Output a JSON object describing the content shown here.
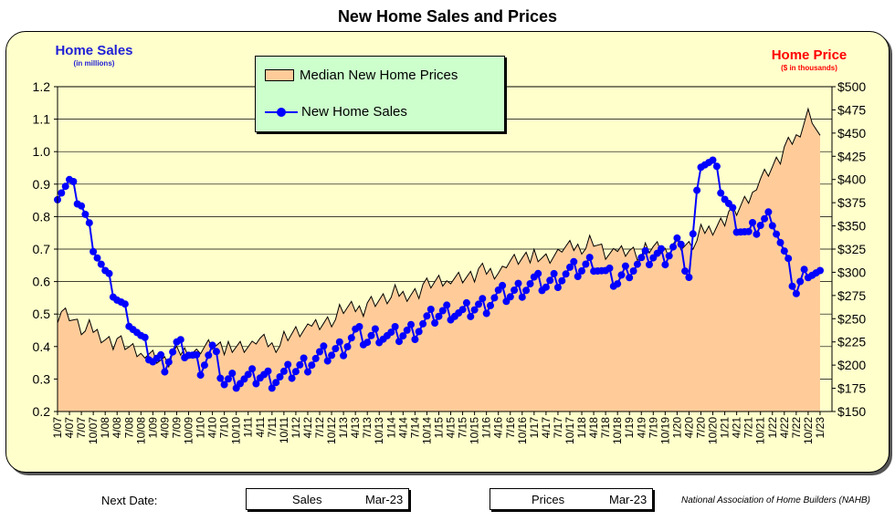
{
  "title": "New Home Sales and Prices",
  "left_axis": {
    "label": "Home Sales",
    "sub": "(in millions)"
  },
  "right_axis": {
    "label": "Home Price",
    "sub": "($ in thousands)"
  },
  "legend": {
    "prices": "Median New Home Prices",
    "sales": "New Home Sales"
  },
  "footer": {
    "next_date": "Next Date:",
    "sales_box": {
      "label": "Sales",
      "date": "Mar-23"
    },
    "prices_box": {
      "label": "Prices",
      "date": "Mar-23"
    },
    "source": "National Association of Home Builders (NAHB)"
  },
  "colors": {
    "panel": "#ffffcc",
    "area": "#ffcc99",
    "sales": "#0000ff",
    "legend_bg": "#ccffcc",
    "left_label": "#1f1fd6",
    "right_label": "#ff0000"
  },
  "chart_data": {
    "type": "line",
    "title": "New Home Sales and Prices",
    "x_tick_labels": [
      "1/07",
      "4/07",
      "7/07",
      "10/07",
      "1/08",
      "4/08",
      "7/08",
      "10/08",
      "1/09",
      "4/09",
      "7/09",
      "10/09",
      "1/10",
      "4/10",
      "7/10",
      "10/10",
      "1/11",
      "4/11",
      "7/11",
      "10/11",
      "1/12",
      "4/12",
      "7/12",
      "10/12",
      "1/13",
      "4/13",
      "7/13",
      "10/13",
      "1/14",
      "4/14",
      "7/14",
      "10/14",
      "1/15",
      "4/15",
      "7/15",
      "10/15",
      "1/16",
      "4/16",
      "7/16",
      "10/16",
      "1/17",
      "4/17",
      "7/17",
      "10/17",
      "1/18",
      "4/18",
      "7/18",
      "10/18",
      "1/19",
      "4/19",
      "7/19",
      "10/19",
      "1/20",
      "4/20",
      "7/20",
      "10/20",
      "1/21",
      "4/21",
      "7/21",
      "10/21",
      "1/22",
      "4/22",
      "7/22",
      "10/22",
      "1/23"
    ],
    "y_left": {
      "label": "Home Sales",
      "unit": "in millions",
      "min": 0.2,
      "max": 1.2,
      "ticks": [
        "0.2",
        "0.3",
        "0.4",
        "0.5",
        "0.6",
        "0.7",
        "0.8",
        "0.9",
        "1.0",
        "1.1",
        "1.2"
      ]
    },
    "y_right": {
      "label": "Home Price",
      "unit": "$ in thousands",
      "min": 150,
      "max": 500,
      "ticks": [
        "$150",
        "$175",
        "$200",
        "$225",
        "$250",
        "$275",
        "$300",
        "$325",
        "$350",
        "$375",
        "$400",
        "$425",
        "$450",
        "$475",
        "$500"
      ]
    },
    "series": [
      {
        "name": "Median New Home Prices",
        "type": "area",
        "axis": "right",
        "quarterly_values": [
          257,
          253,
          240,
          236,
          230,
          225,
          218,
          213,
          210,
          205,
          210,
          218,
          215,
          222,
          218,
          220,
          222,
          225,
          222,
          228,
          235,
          240,
          245,
          250,
          258,
          262,
          265,
          270,
          275,
          275,
          280,
          285,
          290,
          292,
          295,
          298,
          300,
          303,
          310,
          315,
          318,
          315,
          322,
          325,
          330,
          332,
          320,
          322,
          325,
          320,
          325,
          325,
          330,
          328,
          340,
          348,
          360,
          365,
          380,
          400,
          415,
          430,
          445,
          475,
          440
        ]
      },
      {
        "name": "New Home Sales",
        "type": "line",
        "axis": "left",
        "markers": true,
        "quarterly_values": [
          0.88,
          0.9,
          0.84,
          0.72,
          0.62,
          0.55,
          0.49,
          0.42,
          0.36,
          0.35,
          0.4,
          0.38,
          0.34,
          0.39,
          0.29,
          0.3,
          0.3,
          0.31,
          0.3,
          0.31,
          0.33,
          0.35,
          0.37,
          0.38,
          0.4,
          0.44,
          0.42,
          0.44,
          0.43,
          0.44,
          0.45,
          0.48,
          0.5,
          0.51,
          0.5,
          0.52,
          0.53,
          0.56,
          0.56,
          0.58,
          0.6,
          0.59,
          0.61,
          0.63,
          0.64,
          0.66,
          0.62,
          0.6,
          0.64,
          0.66,
          0.68,
          0.68,
          0.72,
          0.62,
          0.98,
          0.96,
          0.86,
          0.78,
          0.74,
          0.78,
          0.8,
          0.68,
          0.57,
          0.64,
          0.62
        ]
      }
    ]
  }
}
